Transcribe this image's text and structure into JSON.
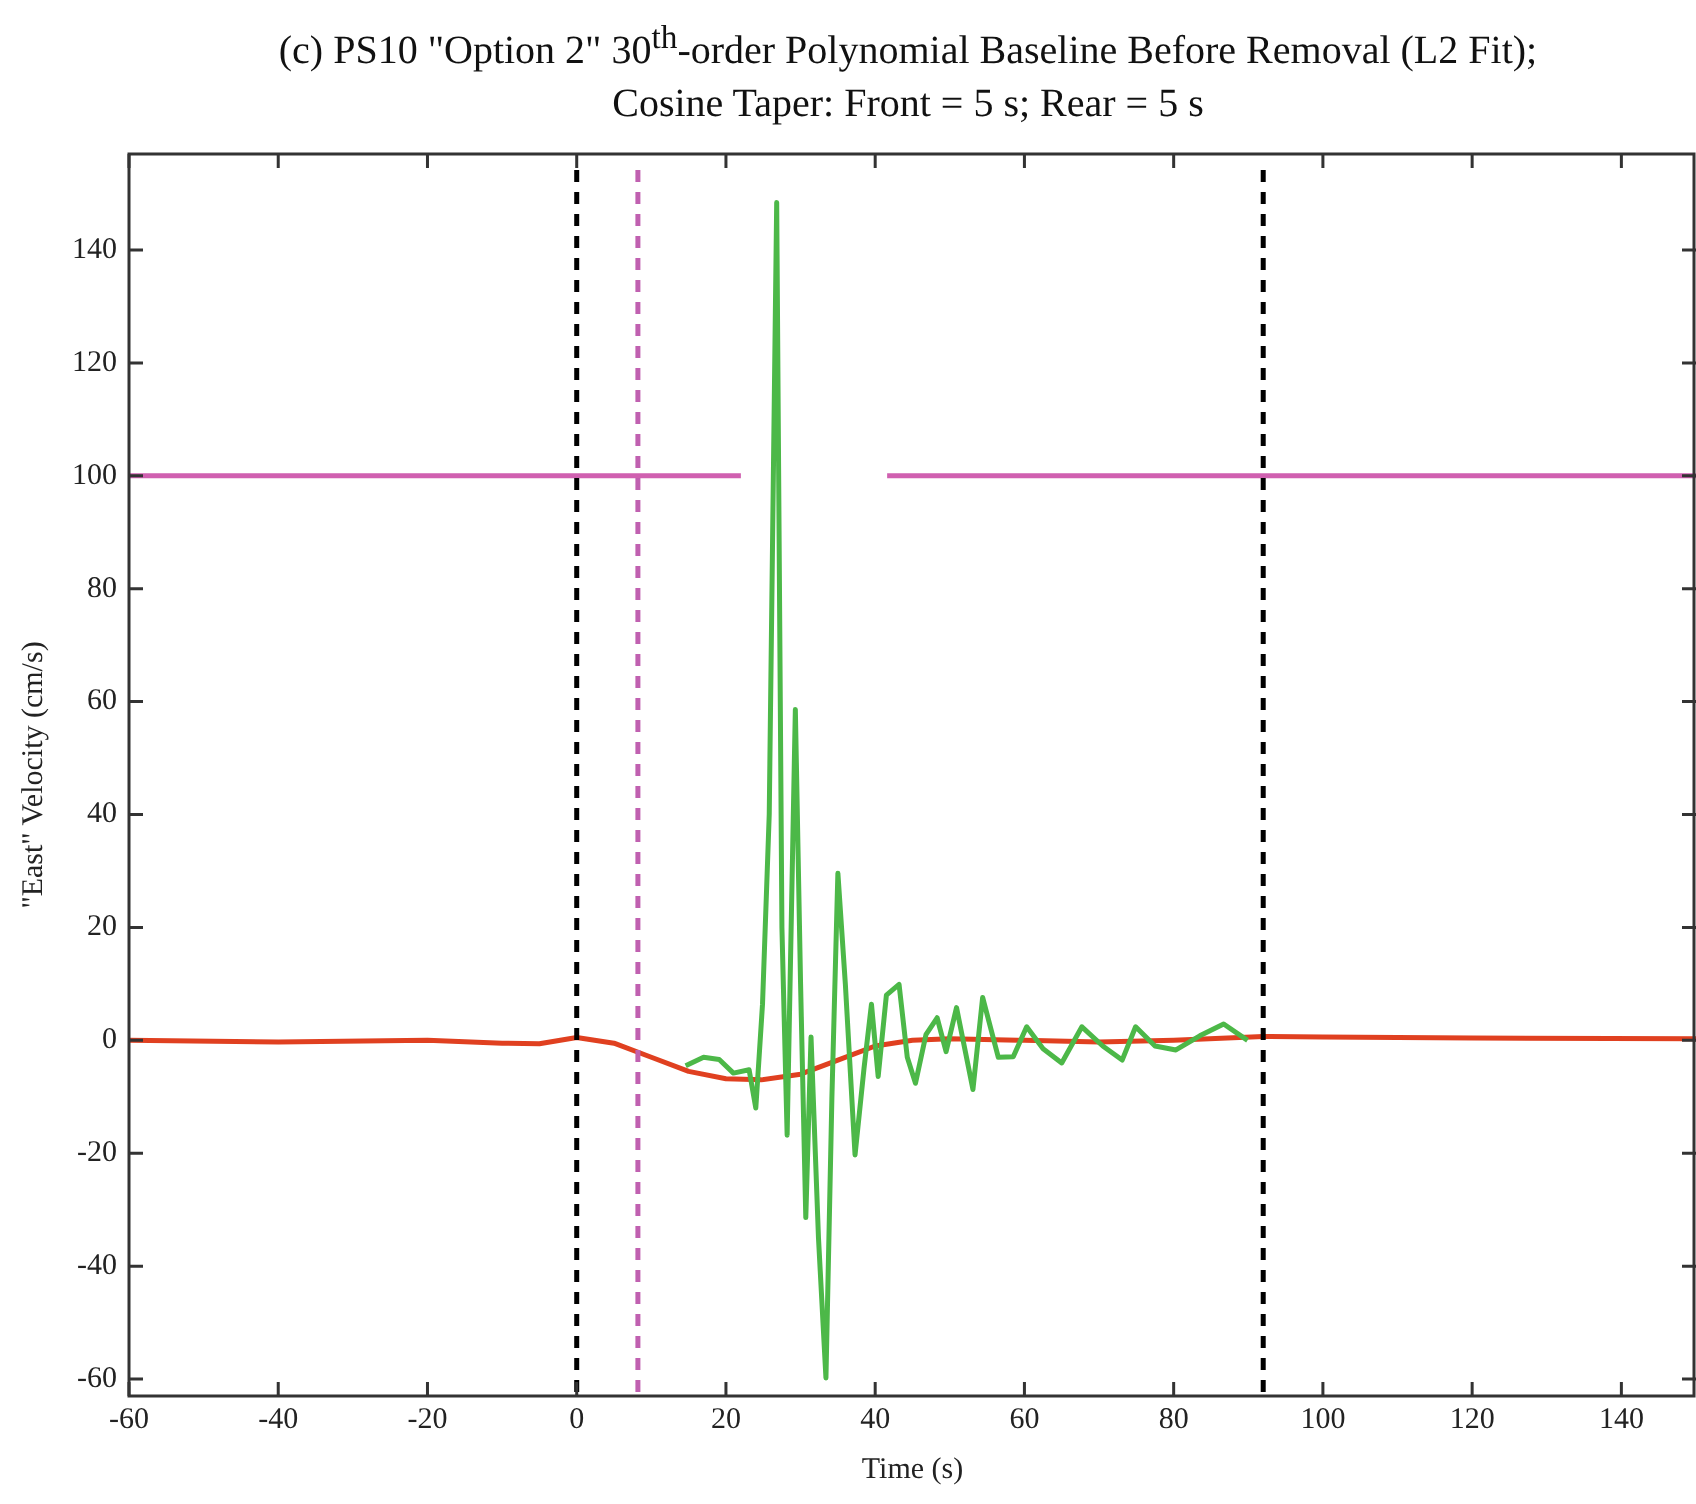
{
  "chart_data": {
    "type": "line",
    "title": "(c) PS10 \"Option 2\" 30$^{th}$-order Polynomial Baseline Before Removal (L2 Fit);",
    "subtitle": "Cosine Taper:  Front = 5 s; Rear = 5 s",
    "xlabel": "Time (s)",
    "ylabel": "\"East\" Velocity (cm/s)",
    "xlim": [
      -60,
      150
    ],
    "ylim": [
      -63,
      157
    ],
    "xticks": [
      -60,
      -40,
      -20,
      0,
      20,
      40,
      60,
      80,
      100,
      120,
      140
    ],
    "yticks": [
      -60,
      -40,
      -20,
      0,
      20,
      40,
      60,
      80,
      100,
      120,
      140
    ],
    "grid": false,
    "legend": false,
    "marker": "none",
    "line_style": "solid",
    "series": [
      {
        "color": "#d060b0",
        "x": [
          -60,
          22,
          30,
          41.6,
          150
        ],
        "values": [
          100,
          100,
          null,
          100,
          100
        ]
      },
      {
        "color": "#4cb848",
        "x": [
          14.6,
          17,
          19.1,
          21,
          23.1,
          24,
          24.9,
          25.8,
          26.8,
          27.5,
          28.2,
          29.3,
          30,
          30.7,
          31.4,
          32.4,
          33.4,
          34.2,
          35,
          36,
          37.3,
          38.5,
          39.5,
          40.4,
          41.5,
          43.2,
          44.3,
          45.4,
          46.8,
          48.3,
          49.5,
          50.9,
          53.1,
          54.4,
          56.5,
          58.5,
          60.3,
          62.5,
          65,
          67.7,
          70.5,
          73.1,
          74.9,
          77.5,
          80.3,
          83.5,
          86.7,
          89.9
        ],
        "values": [
          -4.5,
          -3,
          -3.4,
          -5.8,
          -5.2,
          -12,
          6.4,
          40,
          148.4,
          20,
          -16.8,
          58.6,
          10,
          -31.4,
          0.6,
          -35,
          -59.8,
          -10,
          29.6,
          10,
          -20.3,
          -5,
          6.4,
          -6.4,
          8,
          9.9,
          -3,
          -7.6,
          1,
          4,
          -2,
          5.8,
          -8.7,
          7.6,
          -3,
          -2.9,
          2.4,
          -1.5,
          -4,
          2.4,
          -1,
          -3.5,
          2.4,
          -1,
          -1.7,
          0.8,
          2.9,
          0
        ]
      },
      {
        "color": "#e04020",
        "x": [
          -60,
          -40,
          -20,
          -10,
          -5,
          0,
          5,
          10,
          15,
          20,
          24.7,
          30,
          35,
          40,
          45,
          50,
          60,
          70,
          80,
          92,
          100,
          120,
          150
        ],
        "values": [
          0,
          -0.3,
          0,
          -0.5,
          -0.6,
          0.5,
          -0.5,
          -3,
          -5.5,
          -6.8,
          -7,
          -6,
          -3.5,
          -1,
          0,
          0.3,
          0,
          -0.3,
          0,
          0.7,
          0.6,
          0.4,
          0.3
        ]
      }
    ],
    "ref_lines": [
      {
        "axis": "x",
        "value": 0,
        "color": "#000000",
        "line_style": "dashed"
      },
      {
        "axis": "x",
        "value": 8.2,
        "color": "#c060b0",
        "line_style": "dashed"
      },
      {
        "axis": "x",
        "value": 92,
        "color": "#000000",
        "line_style": "dashed"
      }
    ]
  }
}
